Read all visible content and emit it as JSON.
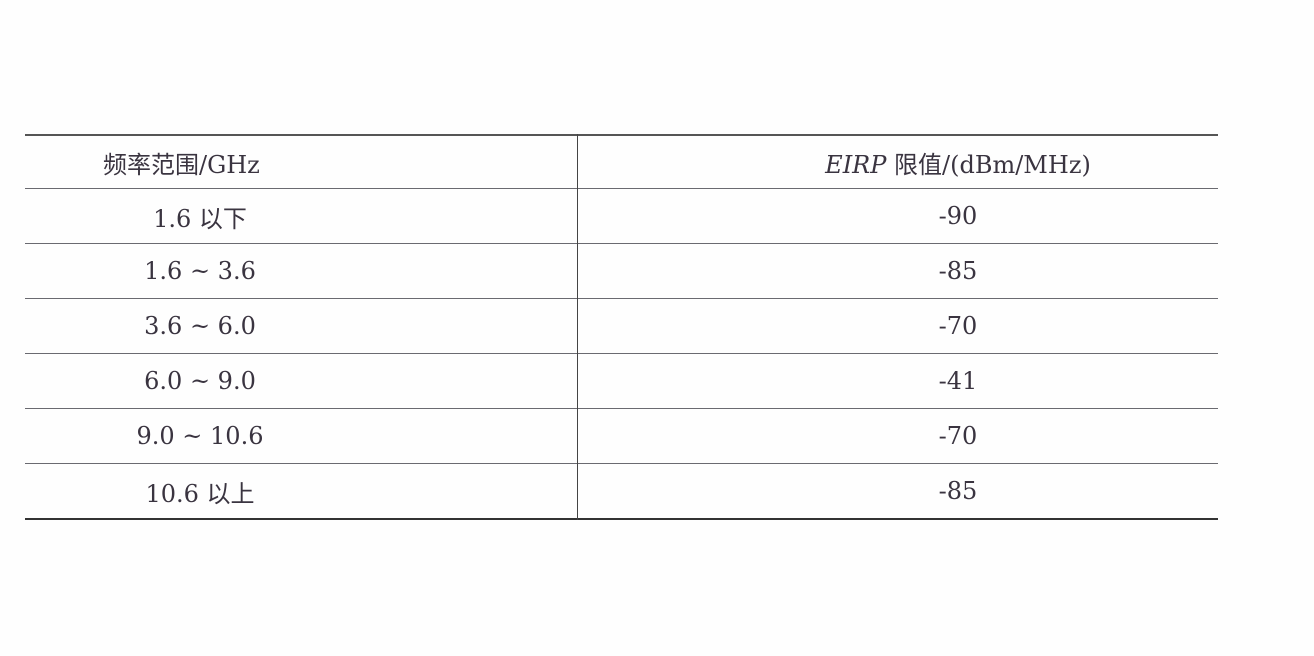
{
  "table": {
    "headers": {
      "col1": "频率范围/GHz",
      "col2_italic": "EIRP",
      "col2_rest": " 限值/(dBm/MHz)"
    },
    "rows": [
      {
        "range": "1.6 以下",
        "eirp": "-90"
      },
      {
        "range": "1.6 ~ 3.6",
        "eirp": "-85"
      },
      {
        "range": "3.6 ~ 6.0",
        "eirp": "-70"
      },
      {
        "range": "6.0 ~ 9.0",
        "eirp": "-41"
      },
      {
        "range": "9.0 ~ 10.6",
        "eirp": "-70"
      },
      {
        "range": "10.6 以上",
        "eirp": "-85"
      }
    ]
  }
}
